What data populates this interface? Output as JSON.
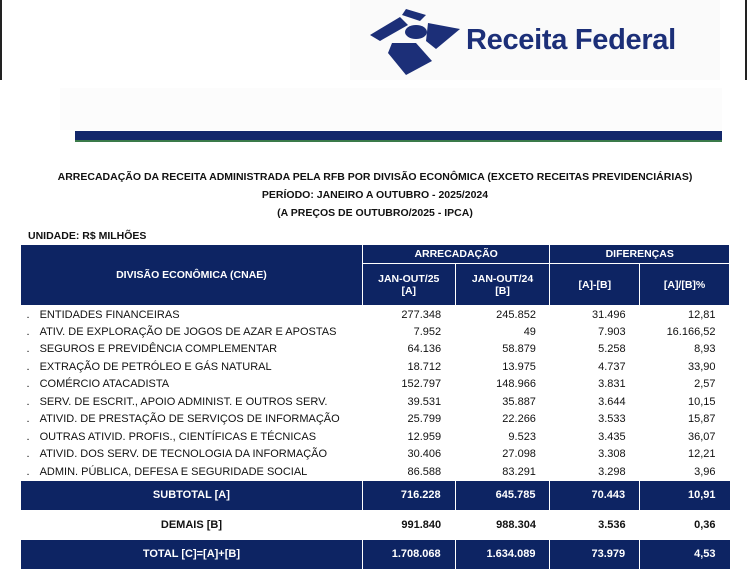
{
  "brand": {
    "name": "Receita Federal",
    "color": "#1c2f78"
  },
  "titles": [
    "ARRECADAÇÃO DA RECEITA ADMINISTRADA PELA RFB POR DIVISÃO ECONÔMICA (EXCETO RECEITAS PREVIDENCIÁRIAS)",
    "PERÍODO: JANEIRO A OUTUBRO - 2025/2024",
    "(A PREÇOS DE OUTUBRO/2025 - IPCA)"
  ],
  "unit": "UNIDADE: R$ MILHÕES",
  "header": {
    "division": "DIVISÃO ECONÔMICA (CNAE)",
    "arrecadacao": "ARRECADAÇÃO",
    "diferencas": "DIFERENÇAS",
    "col_a": "JAN-OUT/25",
    "col_a_tag": "[A]",
    "col_b": "JAN-OUT/24",
    "col_b_tag": "[B]",
    "diff": "[A]-[B]",
    "pct": "[A]/[B]%"
  },
  "rows": [
    {
      "bullet": ".",
      "name": "ENTIDADES FINANCEIRAS",
      "a": "277.348",
      "b": "245.852",
      "d": "31.496",
      "p": "12,81"
    },
    {
      "bullet": ".",
      "name": "ATIV. DE EXPLORAÇÃO DE JOGOS DE AZAR E APOSTAS",
      "a": "7.952",
      "b": "49",
      "d": "7.903",
      "p": "16.166,52"
    },
    {
      "bullet": ".",
      "name": "SEGUROS E PREVIDÊNCIA COMPLEMENTAR",
      "a": "64.136",
      "b": "58.879",
      "d": "5.258",
      "p": "8,93"
    },
    {
      "bullet": ".",
      "name": "EXTRAÇÃO DE PETRÓLEO E GÁS NATURAL",
      "a": "18.712",
      "b": "13.975",
      "d": "4.737",
      "p": "33,90"
    },
    {
      "bullet": ".",
      "name": "COMÉRCIO ATACADISTA",
      "a": "152.797",
      "b": "148.966",
      "d": "3.831",
      "p": "2,57"
    },
    {
      "bullet": ".",
      "name": "SERV. DE ESCRIT., APOIO ADMINIST. E OUTROS SERV.",
      "a": "39.531",
      "b": "35.887",
      "d": "3.644",
      "p": "10,15"
    },
    {
      "bullet": ".",
      "name": "ATIVID. DE PRESTAÇÃO DE SERVIÇOS DE INFORMAÇÃO",
      "a": "25.799",
      "b": "22.266",
      "d": "3.533",
      "p": "15,87"
    },
    {
      "bullet": ".",
      "name": "OUTRAS ATIVID. PROFIS., CIENTÍFICAS E TÉCNICAS",
      "a": "12.959",
      "b": "9.523",
      "d": "3.435",
      "p": "36,07"
    },
    {
      "bullet": ".",
      "name": "ATIVID. DOS SERV. DE TECNOLOGIA DA INFORMAÇÃO",
      "a": "30.406",
      "b": "27.098",
      "d": "3.308",
      "p": "12,21"
    },
    {
      "bullet": ".",
      "name": "ADMIN. PÚBLICA, DEFESA E SEGURIDADE SOCIAL",
      "a": "86.588",
      "b": "83.291",
      "d": "3.298",
      "p": "3,96"
    }
  ],
  "subtotal": {
    "name": "SUBTOTAL [A]",
    "a": "716.228",
    "b": "645.785",
    "d": "70.443",
    "p": "10,91"
  },
  "demais": {
    "name": "DEMAIS [B]",
    "a": "991.840",
    "b": "988.304",
    "d": "3.536",
    "p": "0,36"
  },
  "total": {
    "name": "TOTAL [C]=[A]+[B]",
    "a": "1.708.068",
    "b": "1.634.089",
    "d": "73.979",
    "p": "4,53"
  }
}
